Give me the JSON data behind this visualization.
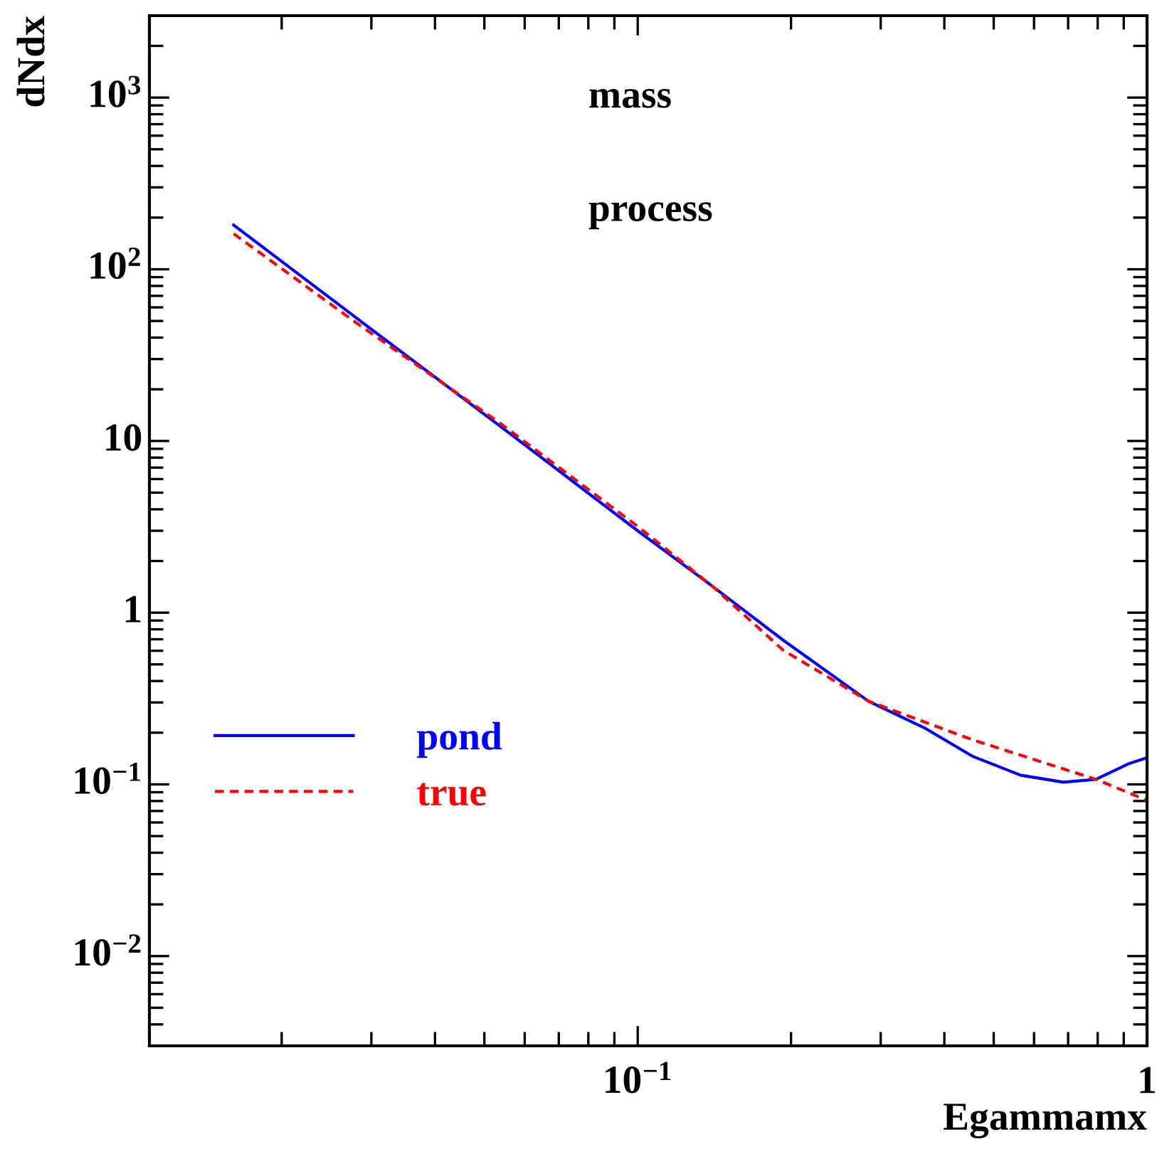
{
  "chart_data": {
    "type": "line",
    "xlabel": "Egammamx",
    "ylabel": "dNdx",
    "annotations": [
      "mass",
      "process"
    ],
    "log": "xy",
    "grid": false,
    "legend": "left",
    "xlim": [
      0.011,
      1
    ],
    "ylim": [
      0.003,
      3000
    ],
    "xticks": [
      {
        "value": 0.1,
        "label": "10$^{−1}$"
      },
      1
    ],
    "yticks": [
      {
        "value": 0.01,
        "label": "10$^{−2}$"
      },
      {
        "value": 0.1,
        "label": "10$^{−1}$"
      },
      1,
      10,
      {
        "value": 100,
        "label": "10$^{2}$"
      },
      {
        "value": 1000,
        "label": "10$^{3}$"
      }
    ],
    "series": [
      {
        "name": "pond",
        "color": "#0000ff",
        "line_style": "solid",
        "x": [
          0.0161,
          0.0281,
          0.0535,
          0.1,
          0.14,
          0.193,
          0.284,
          0.367,
          0.454,
          0.565,
          0.685,
          0.794,
          0.921,
          1.0
        ],
        "values": [
          181,
          51.8,
          12.3,
          3.0,
          1.43,
          0.692,
          0.305,
          0.212,
          0.146,
          0.113,
          0.103,
          0.107,
          0.132,
          0.143
        ]
      },
      {
        "name": "true",
        "color": "#ff0000",
        "line_style": "dashed",
        "x": [
          0.0161,
          0.0281,
          0.0535,
          0.1,
          0.14,
          0.193,
          0.284,
          0.454,
          0.794,
          1.0
        ],
        "values": [
          161,
          48.5,
          12.8,
          3.18,
          1.43,
          0.605,
          0.305,
          0.182,
          0.107,
          0.0807
        ]
      }
    ]
  }
}
